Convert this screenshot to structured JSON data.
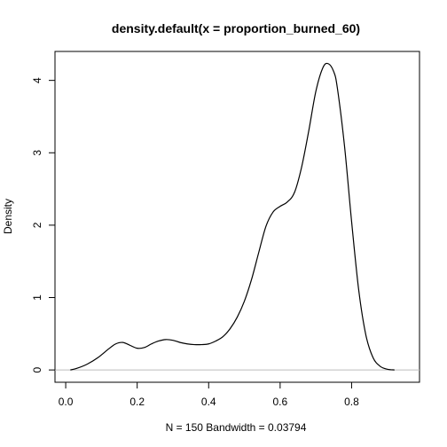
{
  "chart_data": {
    "type": "line",
    "title": "density.default(x = proportion_burned_60)",
    "xlabel": "N = 150   Bandwidth = 0.03794",
    "ylabel": "Density",
    "xlim": [
      -0.03,
      0.99
    ],
    "ylim": [
      -0.17,
      4.4
    ],
    "x_ticks": [
      0.0,
      0.2,
      0.4,
      0.6,
      0.8
    ],
    "x_tick_labels": [
      "0.0",
      "0.2",
      "0.4",
      "0.6",
      "0.8"
    ],
    "y_ticks": [
      0,
      1,
      2,
      3,
      4
    ],
    "y_tick_labels": [
      "0",
      "1",
      "2",
      "3",
      "4"
    ],
    "baseline": 0,
    "series": [
      {
        "x": [
          0.013,
          0.03,
          0.06,
          0.09,
          0.12,
          0.14,
          0.16,
          0.18,
          0.2,
          0.22,
          0.24,
          0.26,
          0.28,
          0.3,
          0.32,
          0.34,
          0.36,
          0.38,
          0.4,
          0.42,
          0.44,
          0.46,
          0.48,
          0.5,
          0.52,
          0.54,
          0.56,
          0.58,
          0.6,
          0.62,
          0.64,
          0.66,
          0.68,
          0.7,
          0.72,
          0.735,
          0.75,
          0.76,
          0.78,
          0.8,
          0.82,
          0.84,
          0.86,
          0.88,
          0.9,
          0.92
        ],
        "y": [
          0.0,
          0.02,
          0.08,
          0.17,
          0.29,
          0.36,
          0.38,
          0.34,
          0.3,
          0.31,
          0.36,
          0.4,
          0.42,
          0.41,
          0.38,
          0.36,
          0.35,
          0.35,
          0.36,
          0.4,
          0.46,
          0.57,
          0.73,
          0.95,
          1.25,
          1.62,
          1.98,
          2.18,
          2.26,
          2.32,
          2.45,
          2.8,
          3.3,
          3.85,
          4.18,
          4.23,
          4.12,
          3.9,
          3.1,
          2.05,
          1.1,
          0.48,
          0.17,
          0.05,
          0.01,
          0.0
        ]
      }
    ]
  }
}
